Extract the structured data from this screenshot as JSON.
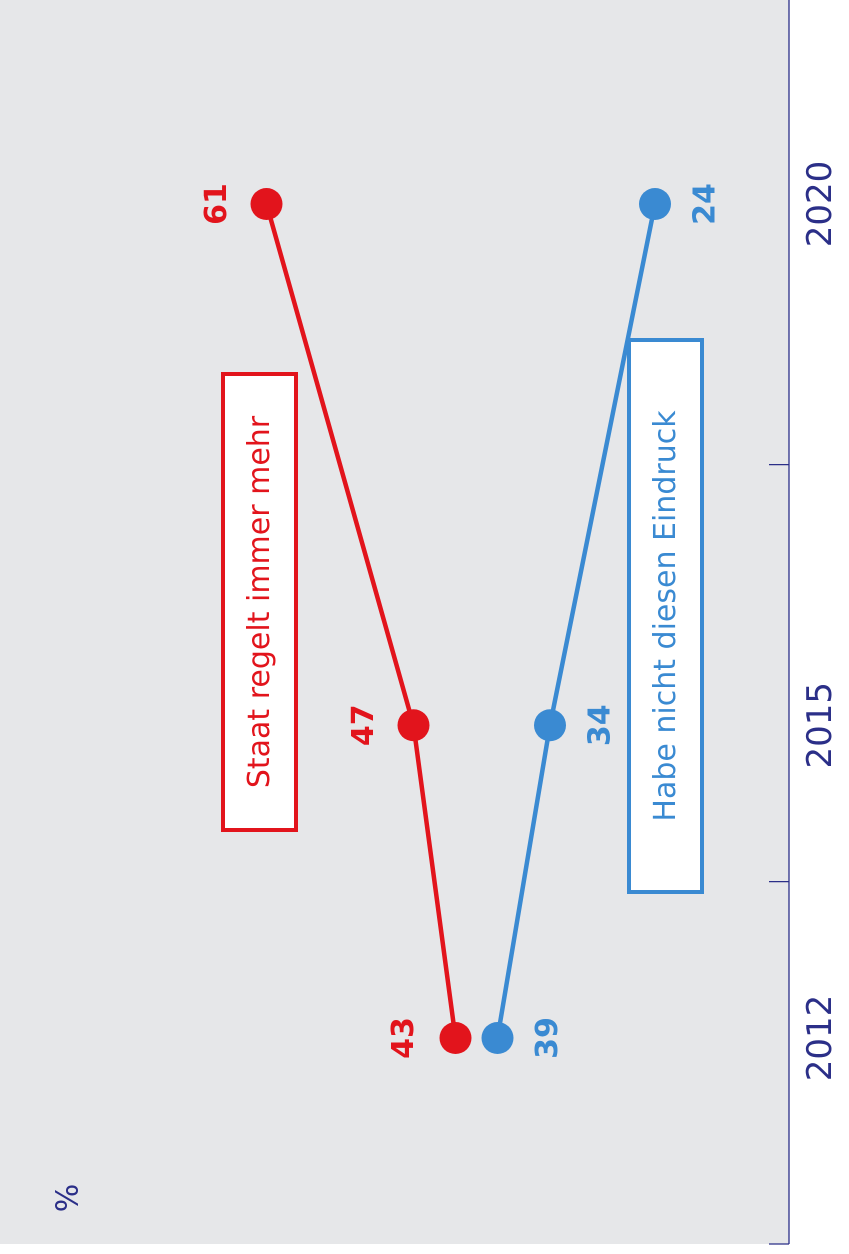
{
  "chart_data": {
    "type": "line",
    "unit_label": "%",
    "x": [
      2012,
      2015,
      2020
    ],
    "x_tick_labels": [
      "2012",
      "2015",
      "2020"
    ],
    "series": [
      {
        "name": "Staat regelt immer mehr",
        "color": "#e2141c",
        "values": [
          43,
          47,
          61
        ],
        "value_labels": [
          "43",
          "47",
          "61"
        ]
      },
      {
        "name": "Habe nicht diesen Eindruck",
        "color": "#3a8ad2",
        "values": [
          39,
          34,
          24
        ],
        "value_labels": [
          "39",
          "34",
          "24"
        ]
      }
    ],
    "axis_color": "#2b2f88",
    "background_color": "#e6e7e9"
  }
}
